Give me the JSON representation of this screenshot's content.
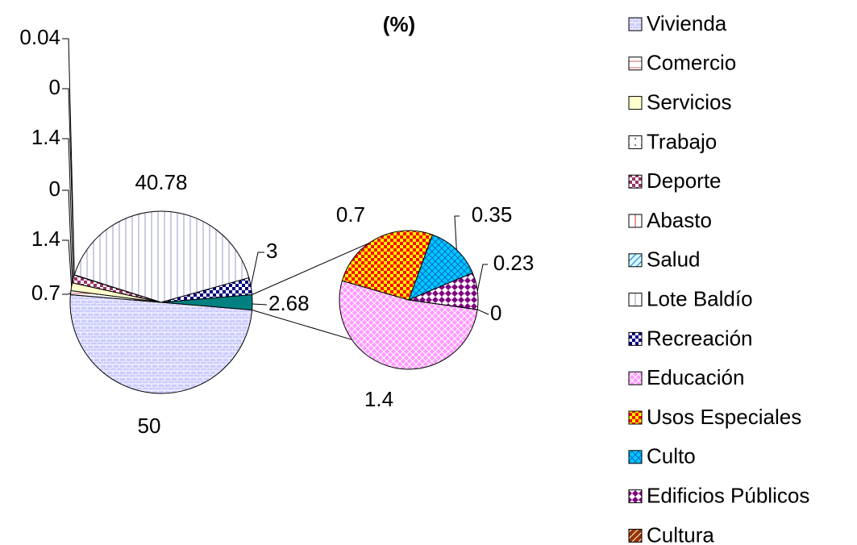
{
  "chart_data": {
    "type": "pie-of-pie",
    "title": "(%)",
    "categories": [
      "Vivienda",
      "Comercio",
      "Servicios",
      "Trabajo",
      "Deporte",
      "Abasto",
      "Salud",
      "Lote Baldío",
      "Recreación",
      "Educación",
      "Usos Especiales",
      "Culto",
      "Edificios Públicos",
      "Cultura"
    ],
    "values": [
      50,
      0.7,
      1.4,
      0,
      1.4,
      0,
      0.04,
      40.78,
      3,
      1.4,
      0.7,
      0.35,
      0.23,
      0
    ],
    "colors": [
      "#ccccff",
      "#ffffff",
      "#ffffcc",
      "#ffffff",
      "#993366",
      "#ffffff",
      "#ccffff",
      "#ffffff",
      "#000080",
      "#ff99ff",
      "#ff0000",
      "#00ccff",
      "#ffffff",
      "#993300"
    ],
    "second_plot_count": 5,
    "other_value": 2.68,
    "other_color": "#008080"
  }
}
